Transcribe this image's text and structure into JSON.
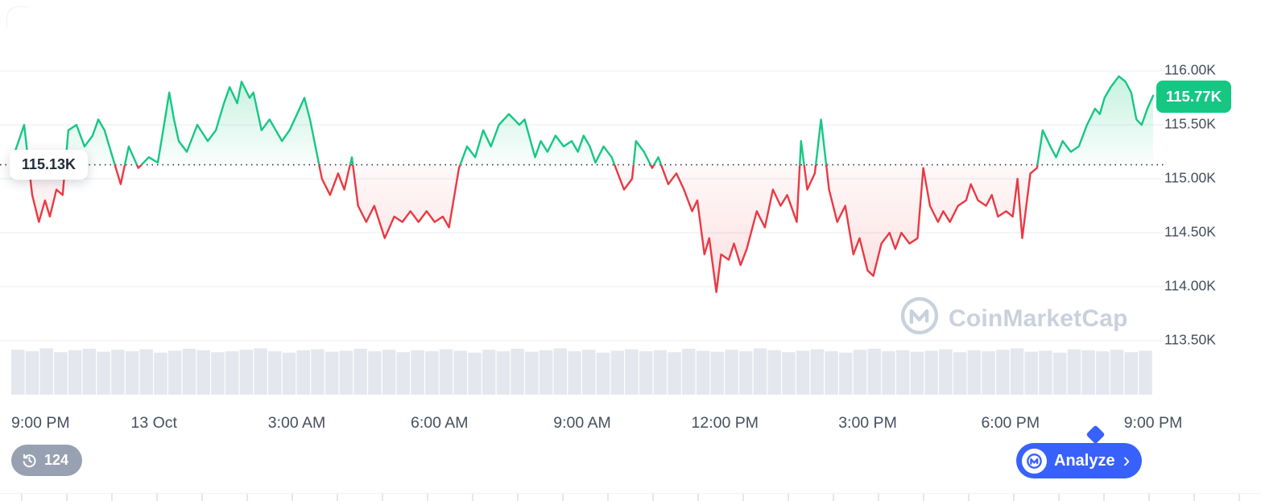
{
  "colors": {
    "up": "#16c784",
    "down": "#ea3943",
    "blue": "#3861fb",
    "grid": "#eff2f6",
    "volume": "#e4e8ee",
    "watermark": "#c9d1dd",
    "pill_gray": "#98a1b2",
    "axis_text": "#434d5c",
    "baseline_dot": "#2b3140"
  },
  "watermark": {
    "label": "CoinMarketCap"
  },
  "controls": {
    "history_count": "124",
    "analyze_label": "Analyze",
    "analyze_chevron": "›"
  },
  "chart_data": {
    "type": "line",
    "title": "",
    "xlabel": "",
    "ylabel": "",
    "ylim": [
      113.3,
      116.35
    ],
    "baseline": {
      "value": 115.13,
      "label": "115.13K"
    },
    "current": {
      "value": 115.77,
      "label": "115.77K"
    },
    "y_axis": {
      "labels": [
        "116.00K",
        "115.50K",
        "115.00K",
        "114.50K",
        "114.00K",
        "113.50K"
      ],
      "values": [
        116.0,
        115.5,
        115.0,
        114.5,
        114.0,
        113.5
      ]
    },
    "x_ticks": {
      "labels": [
        "9:00 PM",
        "13 Oct",
        "3:00 AM",
        "6:00 AM",
        "9:00 AM",
        "12:00 PM",
        "3:00 PM",
        "6:00 PM",
        "9:00 PM"
      ],
      "hours": [
        0,
        3,
        6,
        9,
        12,
        15,
        18,
        21,
        24
      ]
    },
    "x_unit": "hours_from_start",
    "points": [
      [
        0,
        115.15
      ],
      [
        0.27,
        115.5
      ],
      [
        0.44,
        114.85
      ],
      [
        0.58,
        114.6
      ],
      [
        0.71,
        114.8
      ],
      [
        0.81,
        114.65
      ],
      [
        0.95,
        114.9
      ],
      [
        1.08,
        114.85
      ],
      [
        1.2,
        115.45
      ],
      [
        1.37,
        115.5
      ],
      [
        1.54,
        115.3
      ],
      [
        1.71,
        115.4
      ],
      [
        1.83,
        115.55
      ],
      [
        1.96,
        115.45
      ],
      [
        2.13,
        115.2
      ],
      [
        2.3,
        114.95
      ],
      [
        2.47,
        115.3
      ],
      [
        2.67,
        115.1
      ],
      [
        2.89,
        115.2
      ],
      [
        3.08,
        115.15
      ],
      [
        3.23,
        115.55
      ],
      [
        3.32,
        115.8
      ],
      [
        3.42,
        115.55
      ],
      [
        3.52,
        115.35
      ],
      [
        3.69,
        115.25
      ],
      [
        3.91,
        115.5
      ],
      [
        4.13,
        115.35
      ],
      [
        4.3,
        115.45
      ],
      [
        4.47,
        115.7
      ],
      [
        4.59,
        115.85
      ],
      [
        4.75,
        115.7
      ],
      [
        4.84,
        115.9
      ],
      [
        5.01,
        115.75
      ],
      [
        5.09,
        115.8
      ],
      [
        5.26,
        115.45
      ],
      [
        5.43,
        115.55
      ],
      [
        5.69,
        115.35
      ],
      [
        5.85,
        115.45
      ],
      [
        6.06,
        115.65
      ],
      [
        6.16,
        115.75
      ],
      [
        6.28,
        115.55
      ],
      [
        6.53,
        115.0
      ],
      [
        6.7,
        114.85
      ],
      [
        6.87,
        115.05
      ],
      [
        7.0,
        114.9
      ],
      [
        7.16,
        115.2
      ],
      [
        7.29,
        114.75
      ],
      [
        7.46,
        114.6
      ],
      [
        7.63,
        114.75
      ],
      [
        7.85,
        114.45
      ],
      [
        8.05,
        114.65
      ],
      [
        8.22,
        114.6
      ],
      [
        8.39,
        114.7
      ],
      [
        8.56,
        114.6
      ],
      [
        8.73,
        114.7
      ],
      [
        8.9,
        114.6
      ],
      [
        9.07,
        114.65
      ],
      [
        9.2,
        114.55
      ],
      [
        9.41,
        115.1
      ],
      [
        9.58,
        115.3
      ],
      [
        9.75,
        115.2
      ],
      [
        9.92,
        115.45
      ],
      [
        10.08,
        115.3
      ],
      [
        10.25,
        115.5
      ],
      [
        10.46,
        115.6
      ],
      [
        10.68,
        115.5
      ],
      [
        10.79,
        115.55
      ],
      [
        11.01,
        115.2
      ],
      [
        11.13,
        115.35
      ],
      [
        11.27,
        115.25
      ],
      [
        11.44,
        115.4
      ],
      [
        11.61,
        115.3
      ],
      [
        11.78,
        115.35
      ],
      [
        11.91,
        115.25
      ],
      [
        12.03,
        115.4
      ],
      [
        12.16,
        115.3
      ],
      [
        12.28,
        115.15
      ],
      [
        12.45,
        115.3
      ],
      [
        12.62,
        115.2
      ],
      [
        12.88,
        114.9
      ],
      [
        13.05,
        115.0
      ],
      [
        13.13,
        115.35
      ],
      [
        13.3,
        115.25
      ],
      [
        13.47,
        115.1
      ],
      [
        13.6,
        115.2
      ],
      [
        13.81,
        114.95
      ],
      [
        13.98,
        115.05
      ],
      [
        14.14,
        114.9
      ],
      [
        14.31,
        114.7
      ],
      [
        14.42,
        114.8
      ],
      [
        14.57,
        114.3
      ],
      [
        14.67,
        114.45
      ],
      [
        14.82,
        113.95
      ],
      [
        14.92,
        114.3
      ],
      [
        15.08,
        114.25
      ],
      [
        15.19,
        114.4
      ],
      [
        15.33,
        114.2
      ],
      [
        15.46,
        114.35
      ],
      [
        15.67,
        114.7
      ],
      [
        15.84,
        114.55
      ],
      [
        16.01,
        114.9
      ],
      [
        16.17,
        114.75
      ],
      [
        16.31,
        114.85
      ],
      [
        16.51,
        114.6
      ],
      [
        16.6,
        115.35
      ],
      [
        16.73,
        114.9
      ],
      [
        16.89,
        115.05
      ],
      [
        17.02,
        115.55
      ],
      [
        17.19,
        114.9
      ],
      [
        17.36,
        114.6
      ],
      [
        17.53,
        114.75
      ],
      [
        17.7,
        114.3
      ],
      [
        17.83,
        114.45
      ],
      [
        18.0,
        114.15
      ],
      [
        18.12,
        114.1
      ],
      [
        18.29,
        114.4
      ],
      [
        18.46,
        114.5
      ],
      [
        18.58,
        114.35
      ],
      [
        18.71,
        114.5
      ],
      [
        18.88,
        114.4
      ],
      [
        19.05,
        114.45
      ],
      [
        19.17,
        115.1
      ],
      [
        19.31,
        114.75
      ],
      [
        19.48,
        114.6
      ],
      [
        19.59,
        114.7
      ],
      [
        19.73,
        114.6
      ],
      [
        19.9,
        114.75
      ],
      [
        20.07,
        114.8
      ],
      [
        20.17,
        114.95
      ],
      [
        20.32,
        114.8
      ],
      [
        20.49,
        114.75
      ],
      [
        20.61,
        114.85
      ],
      [
        20.74,
        114.65
      ],
      [
        20.91,
        114.7
      ],
      [
        21.05,
        114.65
      ],
      [
        21.15,
        115.0
      ],
      [
        21.25,
        114.45
      ],
      [
        21.42,
        115.05
      ],
      [
        21.56,
        115.1
      ],
      [
        21.68,
        115.45
      ],
      [
        21.84,
        115.3
      ],
      [
        21.96,
        115.2
      ],
      [
        22.1,
        115.35
      ],
      [
        22.27,
        115.25
      ],
      [
        22.44,
        115.3
      ],
      [
        22.61,
        115.5
      ],
      [
        22.78,
        115.65
      ],
      [
        22.88,
        115.6
      ],
      [
        22.98,
        115.75
      ],
      [
        23.11,
        115.85
      ],
      [
        23.28,
        115.95
      ],
      [
        23.42,
        115.9
      ],
      [
        23.54,
        115.8
      ],
      [
        23.65,
        115.55
      ],
      [
        23.76,
        115.5
      ],
      [
        23.88,
        115.65
      ],
      [
        24,
        115.77
      ]
    ],
    "volume": {
      "values": [
        0.93,
        0.9,
        0.96,
        0.88,
        0.92,
        0.95,
        0.89,
        0.93,
        0.9,
        0.94,
        0.87,
        0.91,
        0.95,
        0.92,
        0.88,
        0.9,
        0.93,
        0.96,
        0.9,
        0.87,
        0.92,
        0.94,
        0.89,
        0.91,
        0.95,
        0.9,
        0.93,
        0.88,
        0.92,
        0.9,
        0.94,
        0.91,
        0.87,
        0.93,
        0.9,
        0.95,
        0.89,
        0.92,
        0.96,
        0.9,
        0.93,
        0.87,
        0.91,
        0.94,
        0.9,
        0.92,
        0.88,
        0.95,
        0.91,
        0.89,
        0.93,
        0.9,
        0.96,
        0.92,
        0.88,
        0.91,
        0.94,
        0.9,
        0.87,
        0.93,
        0.95,
        0.9,
        0.92,
        0.89,
        0.91,
        0.94,
        0.88,
        0.92,
        0.9,
        0.93,
        0.96,
        0.89,
        0.91,
        0.87,
        0.94,
        0.92,
        0.9,
        0.93,
        0.88,
        0.91
      ]
    }
  }
}
